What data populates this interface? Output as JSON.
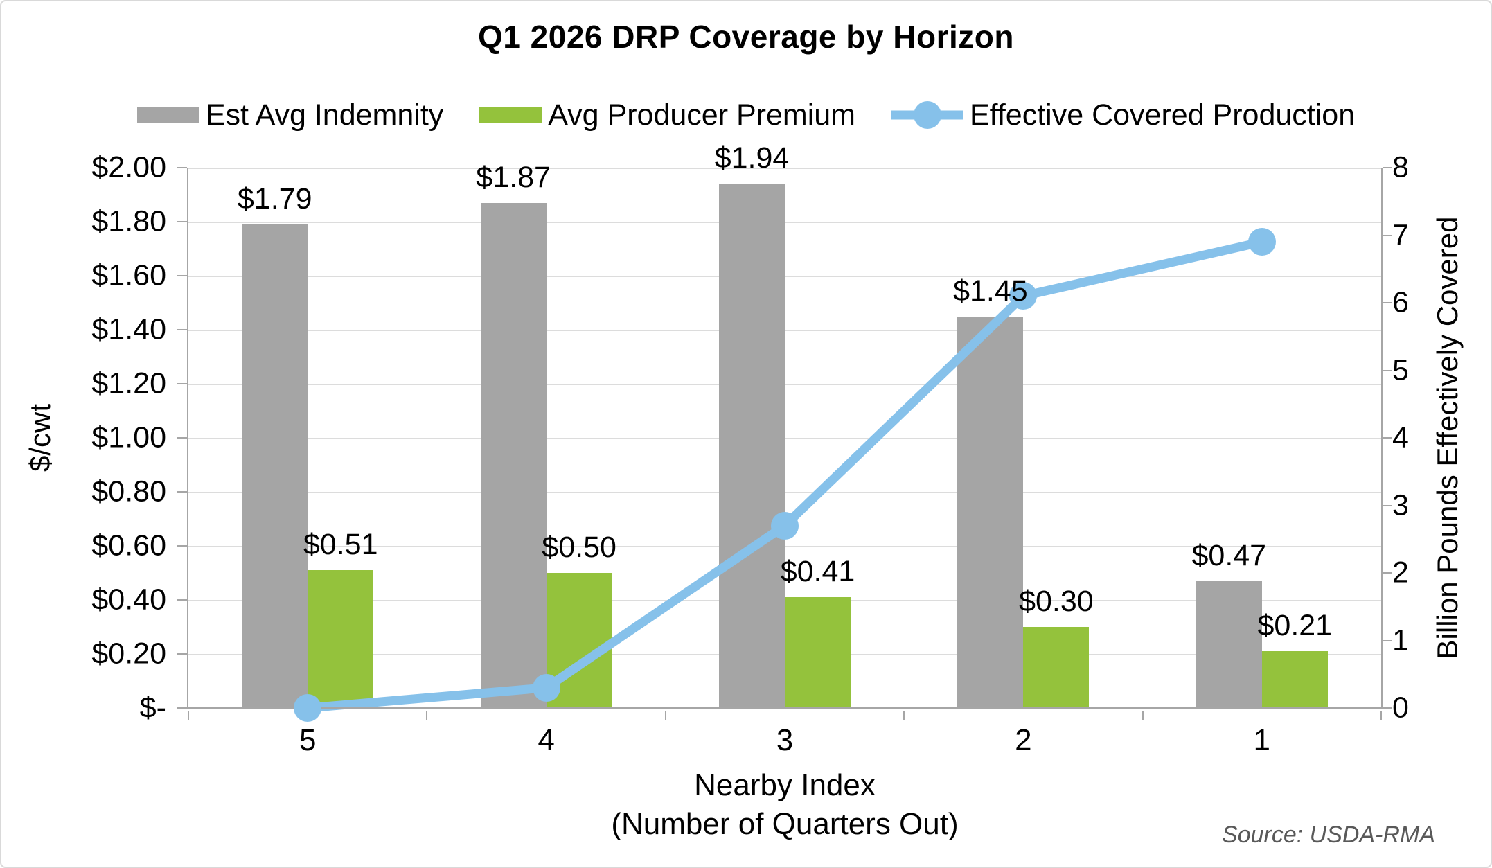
{
  "chart_data": {
    "type": "bar",
    "subtype": "combo-bar-line-dual-axis",
    "title": "Q1 2026 DRP Coverage by Horizon",
    "categories": [
      "5",
      "4",
      "3",
      "2",
      "1"
    ],
    "series": [
      {
        "name": "Est Avg Indemnity",
        "type": "bar",
        "axis": "left",
        "color": "#A5A5A5",
        "values": [
          1.79,
          1.87,
          1.94,
          1.45,
          0.47
        ],
        "labels": [
          "$1.79",
          "$1.87",
          "$1.94",
          "$1.45",
          "$0.47"
        ]
      },
      {
        "name": "Avg Producer Premium",
        "type": "bar",
        "axis": "left",
        "color": "#94C23C",
        "values": [
          0.51,
          0.5,
          0.41,
          0.3,
          0.21
        ],
        "labels": [
          "$0.51",
          "$0.50",
          "$0.41",
          "$0.30",
          "$0.21"
        ]
      },
      {
        "name": "Effective Covered Production",
        "type": "line",
        "axis": "right",
        "color": "#86C1EA",
        "values": [
          0.0,
          0.3,
          2.7,
          6.1,
          6.9
        ]
      }
    ],
    "left_axis": {
      "title": "$/cwt",
      "min": 0,
      "max": 2.0,
      "step": 0.2,
      "ticks": [
        "$2.00",
        "$1.80",
        "$1.60",
        "$1.40",
        "$1.20",
        "$1.00",
        "$0.80",
        "$0.60",
        "$0.40",
        "$0.20",
        "$-"
      ]
    },
    "right_axis": {
      "title": "Billion Pounds Effectively Covered",
      "min": 0,
      "max": 8,
      "step": 1,
      "ticks": [
        "8",
        "7",
        "6",
        "5",
        "4",
        "3",
        "2",
        "1",
        "0"
      ]
    },
    "x_axis": {
      "title_line1": "Nearby Index",
      "title_line2": "(Number of Quarters Out)"
    },
    "legend_position": "top",
    "grid": true,
    "source": "Source: USDA-RMA",
    "colors": {
      "gridline": "#DCDCDC",
      "axis": "#A6A6A6",
      "source_text": "#595959",
      "frame_border": "#D9D9D9"
    }
  }
}
